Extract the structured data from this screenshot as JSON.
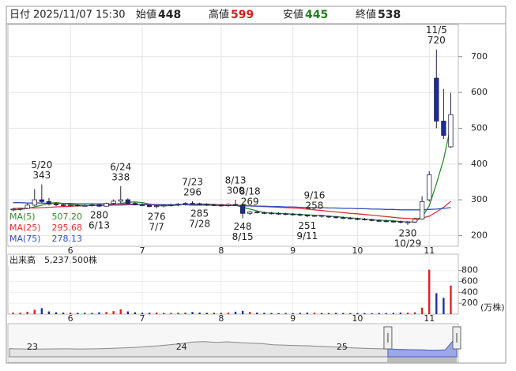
{
  "header": {
    "date_label": "日付",
    "date": "2025/11/07 15:30",
    "open_label": "始値",
    "high_label": "高値",
    "low_label": "安値",
    "close_label": "終値"
  },
  "chart_data": {
    "type": "candlestick",
    "categories": [
      null,
      null,
      null,
      null,
      null,
      null,
      null,
      null,
      "6",
      null,
      null,
      null,
      null,
      null,
      null,
      null,
      null,
      null,
      "7",
      null,
      null,
      null,
      null,
      null,
      null,
      null,
      null,
      null,
      null,
      "8",
      null,
      null,
      null,
      null,
      null,
      null,
      null,
      null,
      null,
      "9",
      null,
      null,
      null,
      null,
      null,
      null,
      null,
      null,
      "10",
      null,
      null,
      null,
      null,
      null,
      null,
      null,
      null,
      null,
      "11",
      null,
      null,
      null
    ],
    "open": [
      272,
      274,
      276,
      285,
      300,
      295,
      288,
      286,
      284,
      285,
      283,
      284,
      286,
      282,
      290,
      296,
      300,
      290,
      286,
      284,
      281,
      283,
      285,
      286,
      288,
      290,
      289,
      287,
      286,
      285,
      284,
      287,
      285,
      262,
      266,
      264,
      263,
      262,
      261,
      260,
      259,
      257,
      255,
      256,
      254,
      252,
      250,
      249,
      247,
      246,
      245,
      242,
      241,
      240,
      239,
      237,
      238,
      246,
      300,
      640,
      520,
      448
    ],
    "high": [
      276,
      278,
      290,
      330,
      343,
      305,
      292,
      290,
      288,
      289,
      287,
      290,
      288,
      292,
      301,
      338,
      304,
      294,
      290,
      288,
      285,
      287,
      289,
      291,
      293,
      296,
      292,
      290,
      289,
      288,
      290,
      300,
      287,
      269,
      268,
      267,
      266,
      265,
      264,
      263,
      262,
      259,
      258,
      257,
      256,
      255,
      253,
      252,
      250,
      249,
      247,
      245,
      244,
      243,
      242,
      240,
      250,
      310,
      380,
      720,
      610,
      599
    ],
    "low": [
      268,
      270,
      274,
      282,
      290,
      284,
      282,
      281,
      281,
      281,
      281,
      281,
      280,
      281,
      286,
      290,
      288,
      284,
      282,
      279,
      276,
      279,
      281,
      282,
      284,
      286,
      285,
      283,
      282,
      281,
      280,
      283,
      248,
      258,
      262,
      260,
      259,
      258,
      257,
      256,
      254,
      251,
      252,
      250,
      249,
      248,
      246,
      245,
      243,
      242,
      240,
      238,
      237,
      236,
      234,
      230,
      235,
      244,
      295,
      500,
      470,
      445
    ],
    "close": [
      274,
      276,
      285,
      300,
      295,
      288,
      286,
      284,
      285,
      283,
      284,
      286,
      282,
      290,
      296,
      300,
      290,
      286,
      284,
      281,
      283,
      285,
      286,
      288,
      290,
      289,
      287,
      286,
      285,
      284,
      287,
      285,
      262,
      266,
      264,
      263,
      262,
      261,
      260,
      259,
      257,
      255,
      256,
      254,
      252,
      250,
      249,
      247,
      246,
      245,
      242,
      241,
      240,
      239,
      237,
      238,
      246,
      295,
      370,
      520,
      480,
      538
    ],
    "up_color": "#ffffff",
    "down_color": "#1c2c96",
    "line_color": "#222244",
    "ylim": [
      170,
      790
    ],
    "yticks": [
      200,
      300,
      400,
      500,
      600,
      700
    ],
    "grid": true,
    "series": [
      {
        "name": "MA(5)",
        "color": "#2e8b2e",
        "last_label": "507.20",
        "values": [
          272,
          273,
          276,
          280,
          285,
          290,
          292,
          290,
          287,
          285,
          284,
          284,
          284,
          285,
          287,
          290,
          293,
          294,
          292,
          288,
          284,
          283,
          284,
          285,
          287,
          288,
          288,
          288,
          287,
          286,
          285,
          285,
          279,
          274,
          269,
          264,
          263,
          262,
          261,
          260,
          259,
          258,
          257,
          256,
          254,
          253,
          251,
          249,
          248,
          246,
          244,
          243,
          242,
          241,
          239,
          238,
          238,
          252,
          283,
          345,
          413,
          507.2
        ]
      },
      {
        "name": "MA(25)",
        "color": "#e03030",
        "last_label": "295.68",
        "values": [
          276,
          276,
          277,
          277,
          278,
          279,
          280,
          281,
          282,
          283,
          283,
          284,
          284,
          284,
          285,
          285,
          286,
          286,
          286,
          286,
          286,
          286,
          286,
          286,
          286,
          286,
          286,
          286,
          286,
          286,
          286,
          285,
          284,
          283,
          282,
          281,
          280,
          279,
          278,
          277,
          276,
          274,
          272,
          270,
          268,
          266,
          264,
          262,
          261,
          259,
          257,
          255,
          253,
          251,
          249,
          248,
          247,
          249,
          254,
          266,
          279,
          295.68
        ]
      },
      {
        "name": "MA(75)",
        "color": "#3050c0",
        "last_label": "278.13",
        "values": [
          292,
          292,
          291,
          291,
          291,
          290,
          290,
          290,
          290,
          289,
          289,
          289,
          289,
          288,
          288,
          288,
          288,
          287,
          287,
          287,
          287,
          286,
          286,
          286,
          286,
          285,
          285,
          285,
          285,
          284,
          284,
          284,
          283,
          283,
          282,
          282,
          281,
          281,
          280,
          280,
          279,
          279,
          278,
          278,
          277,
          277,
          276,
          276,
          275,
          275,
          274,
          274,
          273,
          273,
          272,
          272,
          272,
          272,
          273,
          274,
          276,
          278.13
        ]
      }
    ],
    "annotations": [
      {
        "label": "5/20",
        "value": 343,
        "at": "high"
      },
      {
        "label": "6/13",
        "value": 280,
        "at": "low"
      },
      {
        "label": "6/24",
        "value": 338,
        "at": "high"
      },
      {
        "label": "7/7",
        "value": 276,
        "at": "low"
      },
      {
        "label": "7/23",
        "value": 296,
        "at": "high"
      },
      {
        "label": "7/28",
        "value": 285,
        "at": "low"
      },
      {
        "label": "8/13",
        "value": 300,
        "at": "high"
      },
      {
        "label": "8/15",
        "value": 248,
        "at": "low"
      },
      {
        "label": "8/18",
        "value": 269,
        "at": "high"
      },
      {
        "label": "9/11",
        "value": 251,
        "at": "low"
      },
      {
        "label": "9/16",
        "value": 258,
        "at": "high"
      },
      {
        "label": "10/29",
        "value": 230,
        "at": "low"
      },
      {
        "label": "11/5",
        "value": 720,
        "at": "high"
      }
    ],
    "volume": {
      "label": "出来高",
      "last_label": "5,237,500株",
      "unit": "(万株)",
      "up_color": "#e02020",
      "down_color": "#2030a0",
      "ylim": [
        0,
        1100
      ],
      "yticks": [
        200,
        400,
        600,
        800
      ],
      "values": [
        30,
        28,
        45,
        80,
        110,
        50,
        35,
        30,
        28,
        25,
        30,
        26,
        35,
        40,
        55,
        90,
        50,
        35,
        28,
        26,
        30,
        25,
        24,
        28,
        30,
        40,
        30,
        26,
        24,
        25,
        30,
        45,
        60,
        40,
        30,
        25,
        22,
        20,
        22,
        20,
        24,
        30,
        28,
        22,
        20,
        24,
        22,
        20,
        22,
        20,
        18,
        22,
        20,
        24,
        30,
        28,
        35,
        120,
        815,
        385,
        300,
        523.75
      ]
    },
    "navigator": {
      "color": "#888888",
      "fill": "#e4e4e4",
      "selected_fill": "#9aa8e6",
      "ylim": [
        150,
        750
      ],
      "categories": [
        null,
        null,
        "23",
        null,
        null,
        null,
        null,
        null,
        null,
        null,
        null,
        null,
        null,
        null,
        null,
        "24",
        null,
        null,
        null,
        null,
        null,
        null,
        null,
        null,
        null,
        null,
        null,
        null,
        null,
        "25",
        null,
        null,
        null,
        null,
        null,
        null,
        null,
        null,
        null,
        null
      ],
      "values": [
        305,
        300,
        295,
        298,
        300,
        302,
        298,
        300,
        305,
        310,
        320,
        330,
        345,
        360,
        380,
        400,
        430,
        440,
        425,
        435,
        420,
        410,
        400,
        380,
        370,
        365,
        360,
        350,
        340,
        330,
        320,
        310,
        305,
        300,
        290,
        285,
        280,
        275,
        280,
        540
      ]
    }
  }
}
